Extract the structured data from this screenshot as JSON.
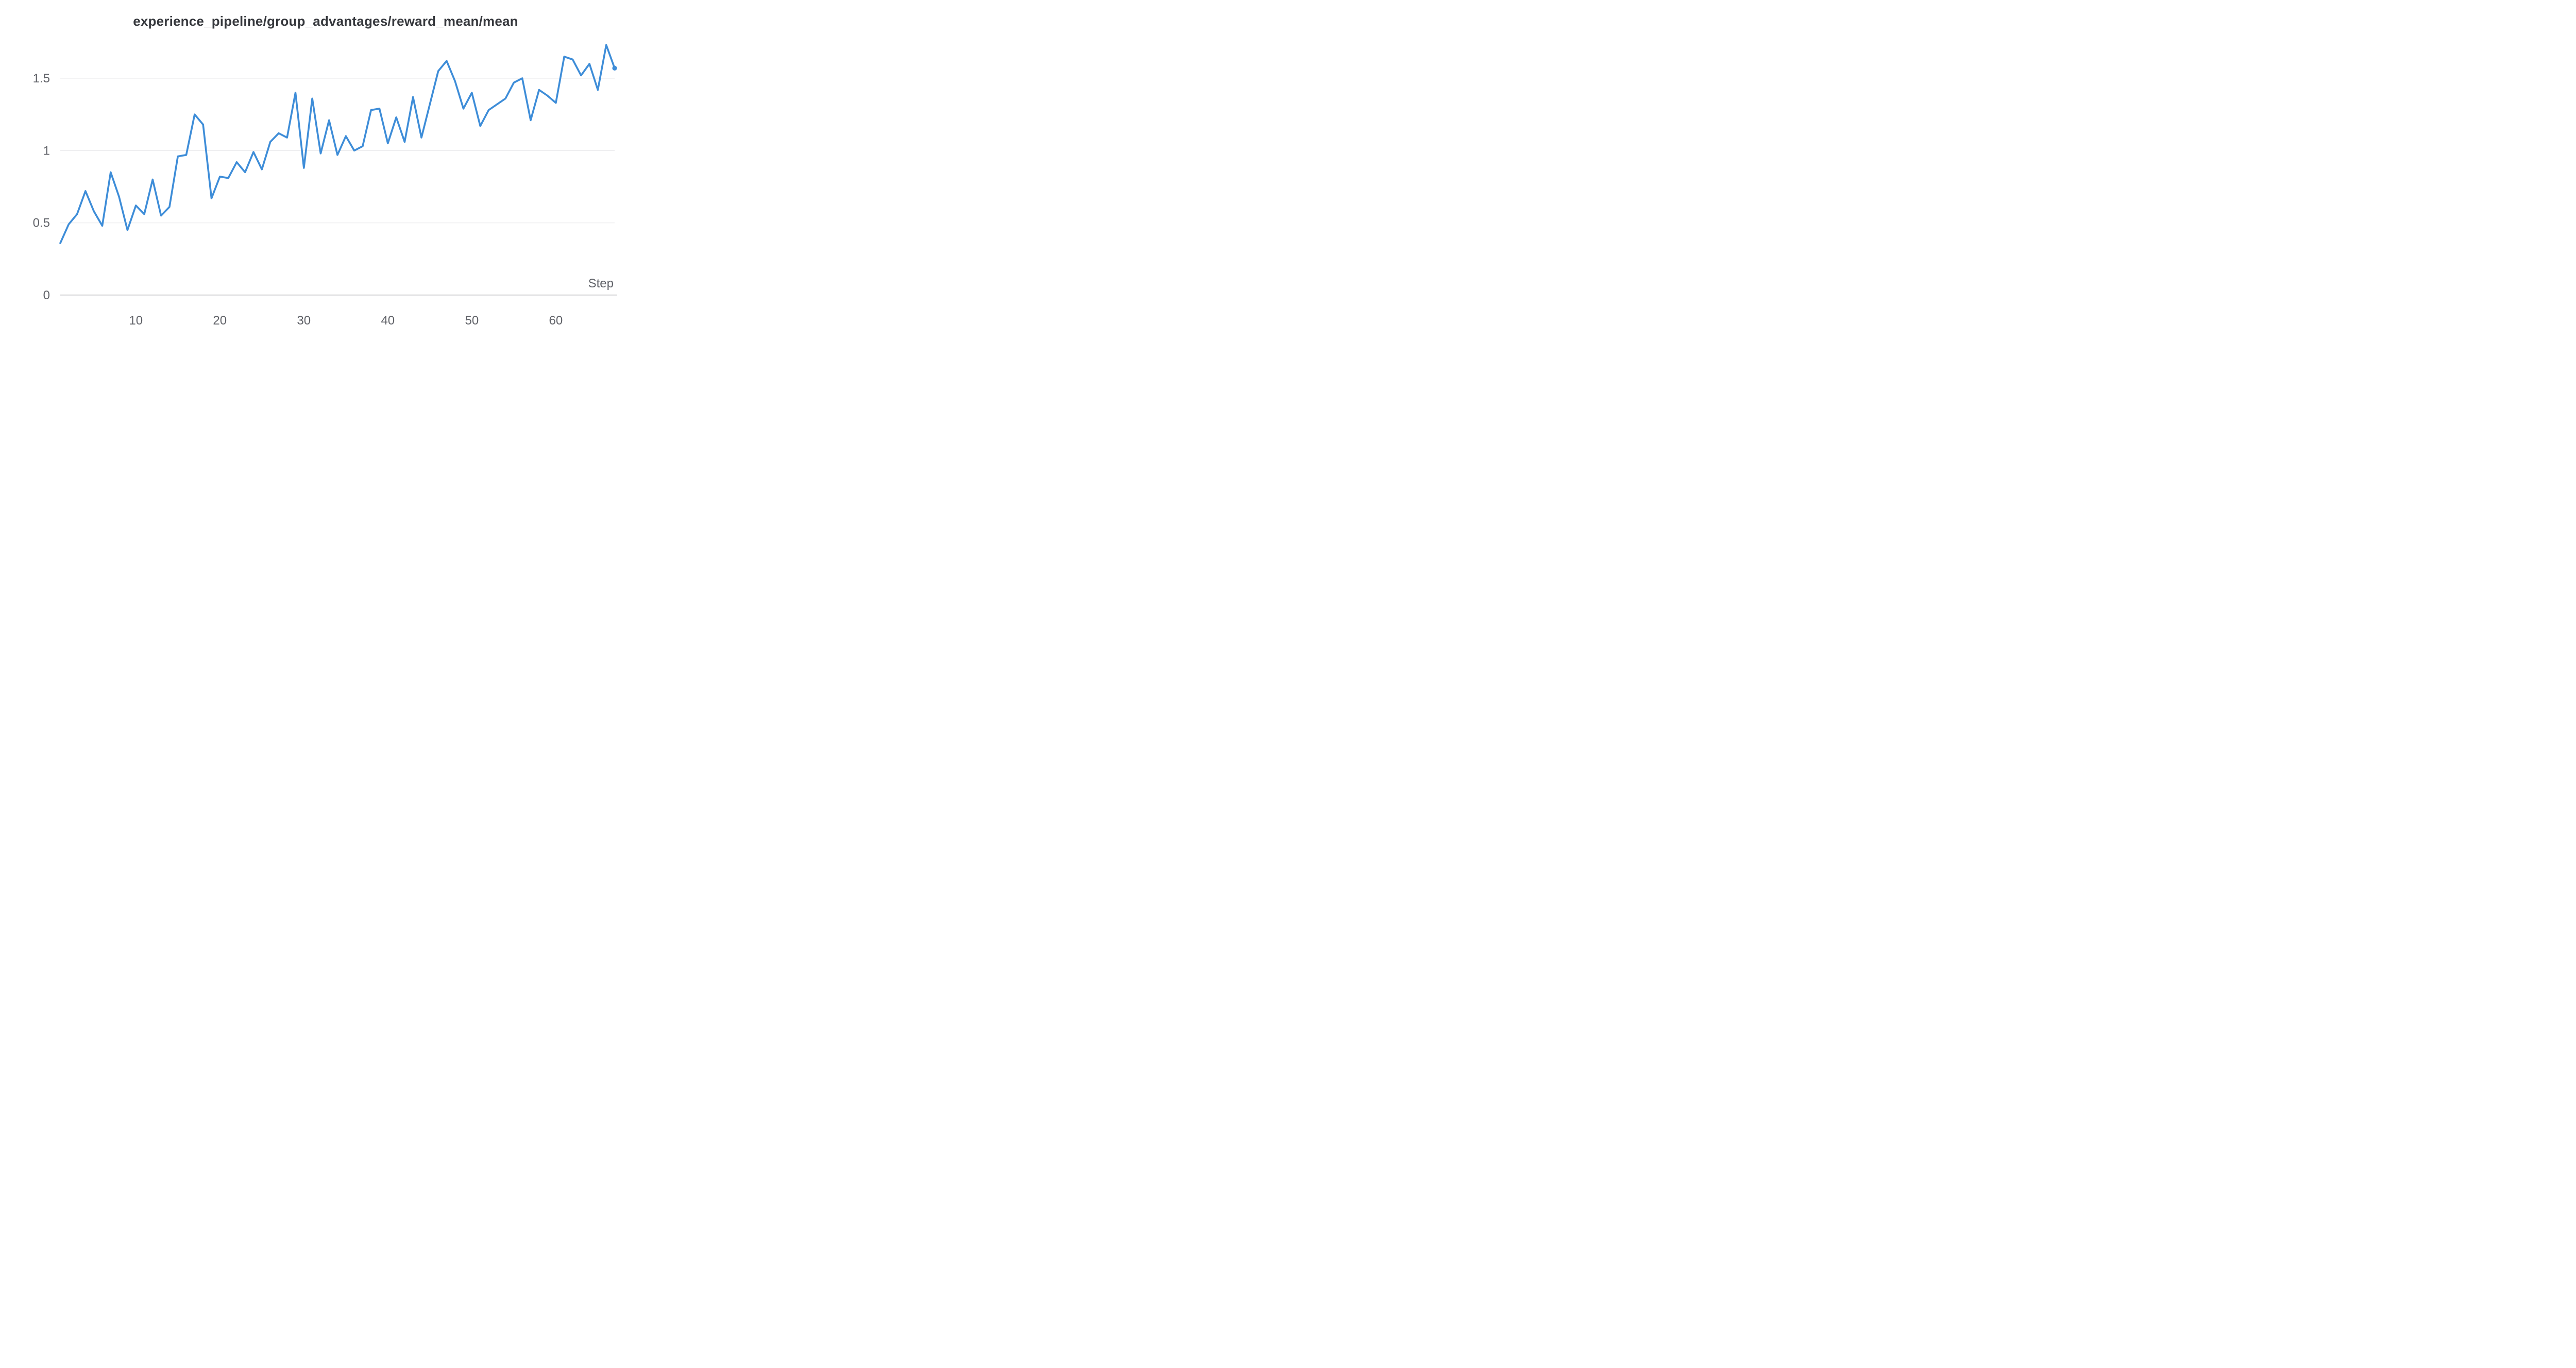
{
  "chart_data": {
    "type": "line",
    "title": "experience_pipeline/group_advantages/reward_mean/mean",
    "xlabel": "Step",
    "ylabel": "",
    "x_ticks": [
      10,
      20,
      30,
      40,
      50,
      60
    ],
    "y_ticks": [
      0,
      0.5,
      1,
      1.5
    ],
    "y_tick_labels": [
      "0",
      "0.5",
      "1",
      "1.5"
    ],
    "ylim": [
      0,
      1.8
    ],
    "grid": "horizontal",
    "legend_position": "none",
    "line_color": "#3e8dd8",
    "line_width": 3.6,
    "end_marker": true,
    "end_marker_radius": 4.6,
    "x": [
      1,
      2,
      3,
      4,
      5,
      6,
      7,
      8,
      9,
      10,
      11,
      12,
      13,
      14,
      15,
      16,
      17,
      18,
      19,
      20,
      21,
      22,
      23,
      24,
      25,
      26,
      27,
      28,
      29,
      30,
      31,
      32,
      33,
      34,
      35,
      36,
      37,
      38,
      39,
      40,
      41,
      42,
      43,
      44,
      45,
      46,
      47,
      48,
      49,
      50,
      51,
      52,
      53,
      54,
      55,
      56,
      57,
      58,
      59,
      60,
      61,
      62,
      63,
      64,
      65,
      66,
      67
    ],
    "values": [
      0.36,
      0.49,
      0.56,
      0.72,
      0.58,
      0.48,
      0.85,
      0.68,
      0.45,
      0.62,
      0.56,
      0.8,
      0.55,
      0.61,
      0.96,
      0.97,
      1.25,
      1.18,
      0.67,
      0.82,
      0.81,
      0.92,
      0.85,
      0.99,
      0.87,
      1.06,
      1.12,
      1.09,
      1.4,
      0.88,
      1.36,
      0.98,
      1.21,
      0.97,
      1.1,
      1.0,
      1.03,
      1.28,
      1.29,
      1.05,
      1.23,
      1.06,
      1.37,
      1.09,
      1.32,
      1.55,
      1.62,
      1.48,
      1.29,
      1.4,
      1.17,
      1.28,
      1.32,
      1.36,
      1.47,
      1.5,
      1.21,
      1.42,
      1.38,
      1.33,
      1.65,
      1.63,
      1.52,
      1.6,
      1.42,
      1.73,
      1.57
    ]
  },
  "colors": {
    "background": "#ffffff",
    "title_text": "#36383d",
    "tick_text": "#606268",
    "gridline": "#ececee",
    "axis_line": "#e4e4e6",
    "series": "#3e8dd8"
  }
}
